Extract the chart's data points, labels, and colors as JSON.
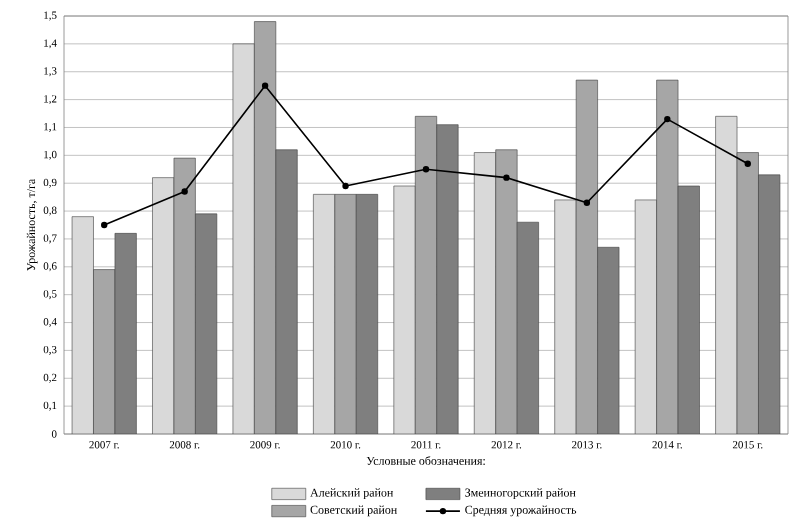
{
  "chart_data": {
    "type": "bar",
    "xlabel": "Условные обозначения:",
    "ylabel": "Урожайность, т/га",
    "categories": [
      "2007 г.",
      "2008 г.",
      "2009 г.",
      "2010 г.",
      "2011 г.",
      "2012 г.",
      "2013 г.",
      "2014 г.",
      "2015 г."
    ],
    "series": [
      {
        "name": "Алейский район",
        "color": "#d9d9d9",
        "values": [
          0.78,
          0.92,
          1.4,
          0.86,
          0.89,
          1.01,
          0.84,
          0.84,
          1.14
        ]
      },
      {
        "name": "Советский район",
        "color": "#a6a6a6",
        "values": [
          0.59,
          0.99,
          1.48,
          0.86,
          1.14,
          1.02,
          1.27,
          1.27,
          1.01
        ]
      },
      {
        "name": "Змеиногорский район",
        "color": "#7f7f7f",
        "values": [
          0.72,
          0.79,
          1.02,
          0.86,
          1.11,
          0.76,
          0.67,
          0.89,
          0.93
        ]
      },
      {
        "name": "Средняя урожайность",
        "type": "line",
        "color": "#000000",
        "marker": "circle",
        "values": [
          0.75,
          0.87,
          1.25,
          0.89,
          0.95,
          0.92,
          0.83,
          1.13,
          0.97
        ]
      }
    ],
    "ylim": [
      0,
      1.5
    ],
    "yticks": [
      0,
      {
        "value": 0.1,
        "label": "0,1"
      },
      {
        "value": 0.2,
        "label": "0,2"
      },
      {
        "value": 0.3,
        "label": "0,3"
      },
      {
        "value": 0.4,
        "label": "0,4"
      },
      {
        "value": 0.5,
        "label": "0,5"
      },
      {
        "value": 0.6,
        "label": "0,6"
      },
      {
        "value": 0.7,
        "label": "0,7"
      },
      {
        "value": 0.8,
        "label": "0,8"
      },
      {
        "value": 0.9,
        "label": "0,9"
      },
      {
        "value": 1,
        "label": "1,0"
      },
      {
        "value": 1.1,
        "label": "1,1"
      },
      {
        "value": 1.2,
        "label": "1,2"
      },
      {
        "value": 1.3,
        "label": "1,3"
      },
      {
        "value": 1.4,
        "label": "1,4"
      },
      {
        "value": 1.5,
        "label": "1,5"
      }
    ],
    "grid": "y",
    "legend": "bottom"
  }
}
